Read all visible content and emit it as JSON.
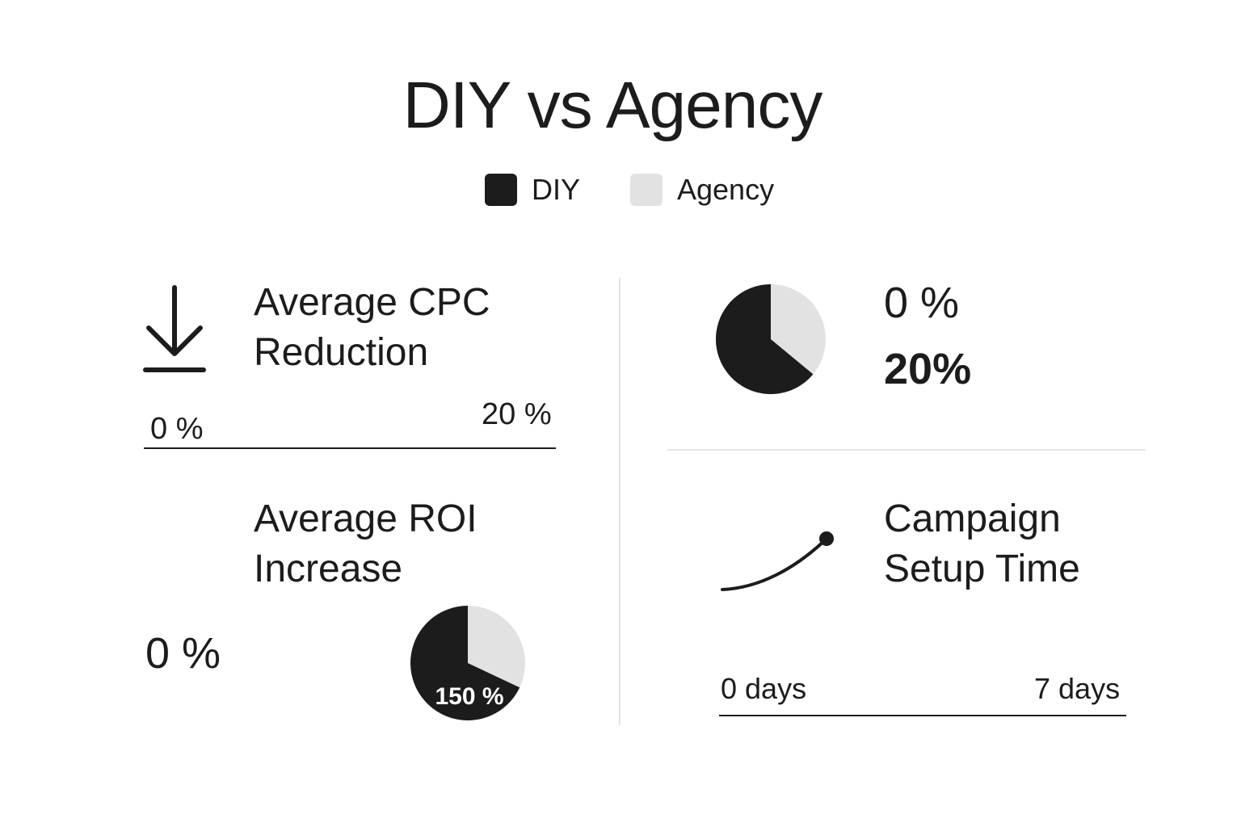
{
  "chart_data": {
    "type": "infographic",
    "title": "DIY vs Agency",
    "legend": [
      {
        "label": "DIY",
        "color": "#1c1c1c"
      },
      {
        "label": "Agency",
        "color": "#e2e2e2"
      }
    ],
    "panels": {
      "cpc": {
        "title_line1": "Average CPC",
        "title_line2": "Reduction",
        "icon": "arrow-down-to-line-icon",
        "low_label": "0 %",
        "high_label": "20 %",
        "low": 0,
        "high": 20,
        "unit": "%"
      },
      "share": {
        "type": "pie",
        "slices": [
          {
            "name": "DIY",
            "fraction": 0.64,
            "color": "#1c1c1c"
          },
          {
            "name": "Agency",
            "fraction": 0.36,
            "color": "#e2e2e2"
          }
        ],
        "value1": "0 %",
        "value2": "20%"
      },
      "roi": {
        "title_line1": "Average ROI",
        "title_line2": "Increase",
        "low_label": "0 %",
        "pie_label": "150 %",
        "slices": [
          {
            "name": "DIY",
            "fraction": 0.68,
            "color": "#1c1c1c"
          },
          {
            "name": "Agency",
            "fraction": 0.32,
            "color": "#e2e2e2"
          }
        ]
      },
      "setup": {
        "title_line1": "Campaign",
        "title_line2": "Setup Time",
        "icon": "rising-curve-icon",
        "low_label": "0 days",
        "high_label": "7 days",
        "low": 0,
        "high": 7,
        "unit": "days"
      }
    }
  }
}
